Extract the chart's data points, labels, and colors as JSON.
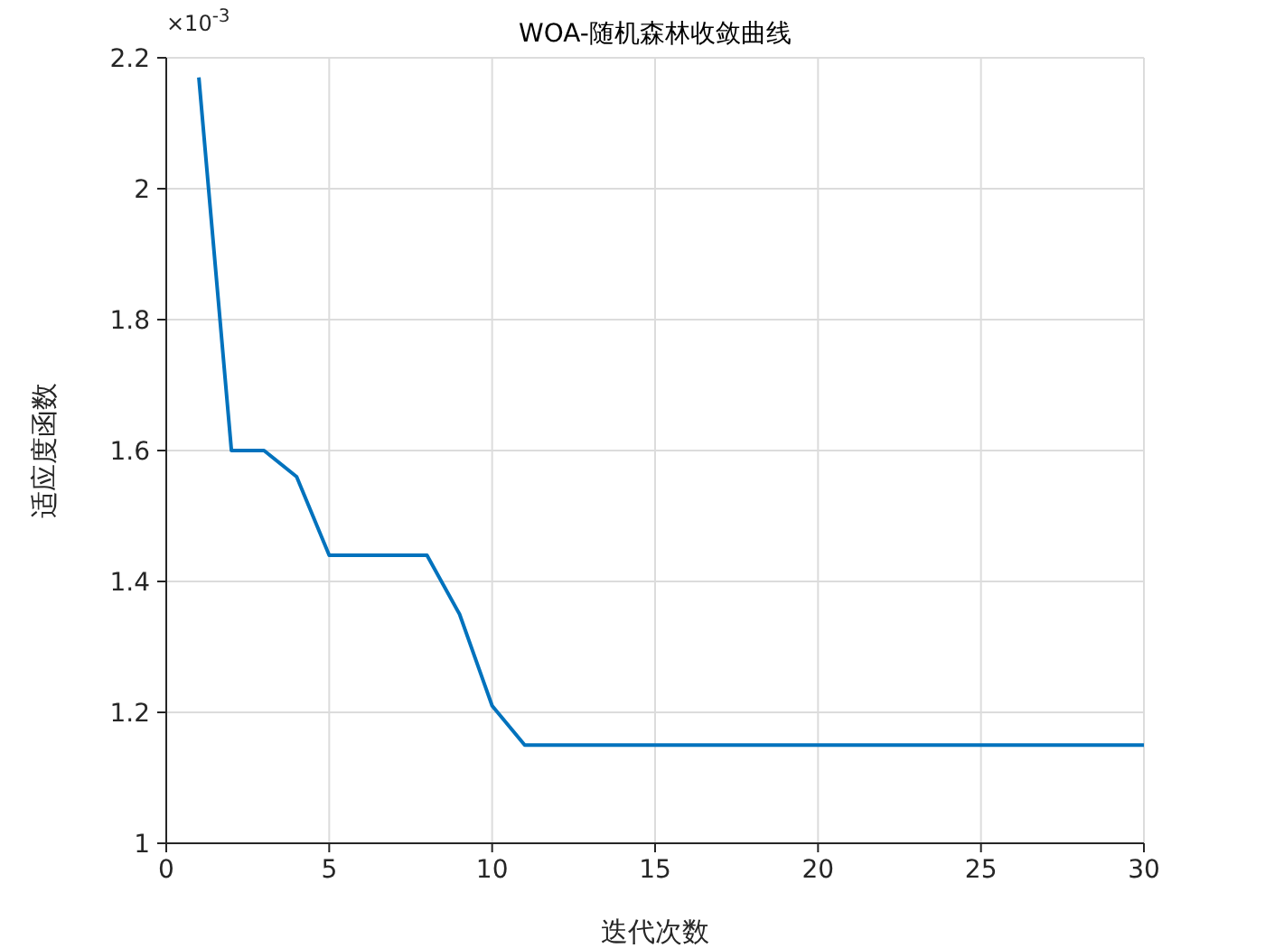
{
  "chart_data": {
    "type": "line",
    "title": "WOA-随机森林收敛曲线",
    "xlabel": "迭代次数",
    "ylabel": "适应度函数",
    "annotations": [
      "×10$^{-3}$"
    ],
    "x": [
      1,
      2,
      3,
      4,
      5,
      6,
      7,
      8,
      9,
      10,
      11,
      12,
      13,
      14,
      15,
      16,
      17,
      18,
      19,
      20,
      21,
      22,
      23,
      24,
      25,
      26,
      27,
      28,
      29,
      30
    ],
    "series": [
      {
        "color": "#0072bd",
        "values": [
          2.17,
          1.6,
          1.6,
          1.56,
          1.44,
          1.44,
          1.44,
          1.44,
          1.35,
          1.21,
          1.15,
          1.15,
          1.15,
          1.15,
          1.15,
          1.15,
          1.15,
          1.15,
          1.15,
          1.15,
          1.15,
          1.15,
          1.15,
          1.15,
          1.15,
          1.15,
          1.15,
          1.15,
          1.15,
          1.15
        ]
      }
    ],
    "xlim": [
      0,
      30
    ],
    "xticks": [
      0,
      5,
      10,
      15,
      20,
      25,
      30
    ],
    "ylim": [
      1,
      2.2
    ],
    "yticks": [
      1,
      1.2,
      1.4,
      1.6,
      1.8,
      2,
      2.2
    ],
    "grid": true,
    "marker": "none",
    "line_style": "solid",
    "legend": false
  }
}
